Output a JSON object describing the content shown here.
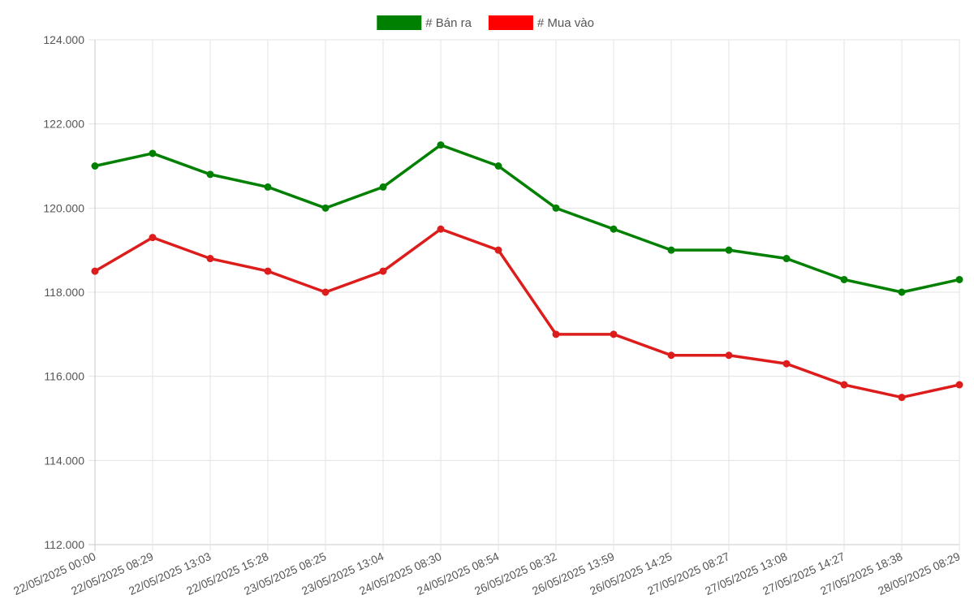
{
  "chart_data": {
    "type": "line",
    "categories": [
      "22/05/2025 00:00",
      "22/05/2025 08:29",
      "22/05/2025 13:03",
      "22/05/2025 15:28",
      "23/05/2025 08:25",
      "23/05/2025 13:04",
      "24/05/2025 08:30",
      "24/05/2025 08:54",
      "26/05/2025 08:32",
      "26/05/2025 13:59",
      "26/05/2025 14:25",
      "27/05/2025 08:27",
      "27/05/2025 13:08",
      "27/05/2025 14:27",
      "27/05/2025 18:38",
      "28/05/2025 08:29"
    ],
    "series": [
      {
        "name": "# Bán ra",
        "color": "#008000",
        "values": [
          121000,
          121300,
          120800,
          120500,
          120000,
          120500,
          121500,
          121000,
          120000,
          119500,
          119000,
          119000,
          118800,
          118300,
          118000,
          118300
        ]
      },
      {
        "name": "# Mua vào",
        "color": "#ff0000",
        "line_color": "#dd1c1c",
        "values": [
          118500,
          119300,
          118800,
          118500,
          118000,
          118500,
          119500,
          119000,
          117000,
          117000,
          116500,
          116500,
          116300,
          115800,
          115500,
          115800
        ]
      }
    ],
    "y_ticks": [
      "112.000",
      "114.000",
      "116.000",
      "118.000",
      "120.000",
      "122.000",
      "124.000"
    ],
    "ylim": [
      112000,
      124000
    ],
    "title": "",
    "xlabel": "",
    "ylabel": "",
    "grid": true,
    "legend_position": "top-center"
  }
}
